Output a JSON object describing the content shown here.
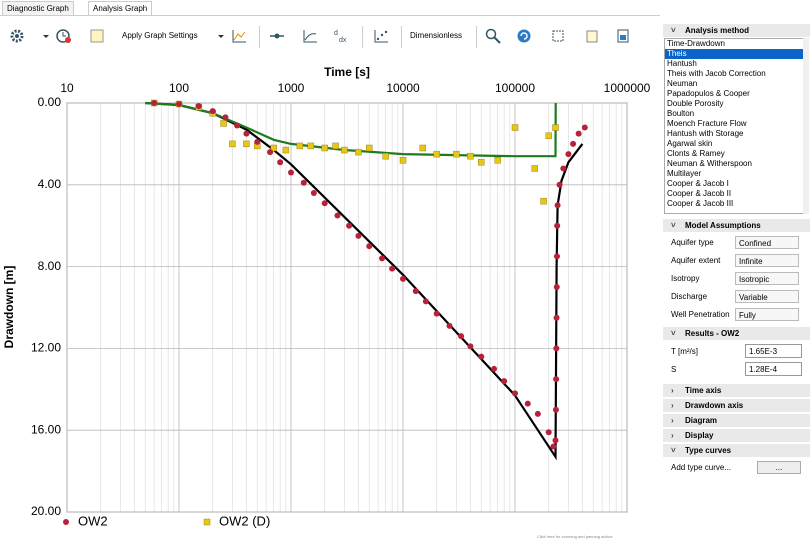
{
  "tabs": [
    "Diagnostic Graph",
    "Analysis Graph"
  ],
  "toolbar": {
    "apply": "Apply Graph Settings",
    "dimensionless": "Dimensionless"
  },
  "chart_data": {
    "type": "scatter",
    "xlabel": "Time [s]",
    "ylabel": "Drawdown [m]",
    "xlog": true,
    "yinverted": true,
    "grid": true,
    "legend": "bottom",
    "xlim": [
      10,
      1000000
    ],
    "xticks": [
      10,
      100,
      1000,
      10000,
      100000,
      1000000
    ],
    "ylim": [
      0,
      20
    ],
    "yticks": [
      {
        "value": 0,
        "label": "0.00"
      },
      {
        "value": 4,
        "label": "4.00"
      },
      {
        "value": 8,
        "label": "8.00"
      },
      {
        "value": 12,
        "label": "12.00"
      },
      {
        "value": 16,
        "label": "16.00"
      },
      {
        "value": 20,
        "label": "20.00"
      }
    ],
    "series": [
      {
        "name": "OW2",
        "color": "#b5223a",
        "marker": "circle",
        "x": [
          60,
          100,
          150,
          200,
          260,
          330,
          400,
          500,
          650,
          800,
          1000,
          1300,
          1600,
          2000,
          2600,
          3300,
          4000,
          5000,
          6500,
          8000,
          10000,
          13000,
          16000,
          20000,
          26000,
          33000,
          40000,
          50000,
          65000,
          80000,
          100000,
          130000,
          160000,
          200000,
          220000,
          230000,
          232000,
          233000,
          234000,
          235000,
          236000,
          237000,
          238000,
          240000,
          250000,
          270000,
          300000,
          330000,
          370000,
          420000
        ],
        "values": [
          0.0,
          0.05,
          0.15,
          0.4,
          0.7,
          1.1,
          1.5,
          1.9,
          2.4,
          2.9,
          3.4,
          3.9,
          4.4,
          4.9,
          5.5,
          6.0,
          6.5,
          7.0,
          7.6,
          8.1,
          8.6,
          9.2,
          9.7,
          10.3,
          10.9,
          11.4,
          11.9,
          12.4,
          13.0,
          13.6,
          14.2,
          14.7,
          15.2,
          16.1,
          16.8,
          16.5,
          15.0,
          13.5,
          12.0,
          10.5,
          9.0,
          7.5,
          6.0,
          5.0,
          4.0,
          3.2,
          2.5,
          2.0,
          1.5,
          1.2
        ]
      },
      {
        "name": "OW2 (D)",
        "color": "#e8c619",
        "marker": "square",
        "x": [
          60,
          100,
          150,
          200,
          250,
          300,
          400,
          500,
          700,
          900,
          1200,
          1500,
          2000,
          2500,
          3000,
          4000,
          5000,
          7000,
          10000,
          15000,
          20000,
          30000,
          40000,
          50000,
          70000,
          100000,
          150000,
          180000,
          200000,
          230000
        ],
        "values": [
          0.0,
          0.05,
          0.2,
          0.5,
          1.0,
          2.0,
          2.0,
          2.1,
          2.2,
          2.3,
          2.1,
          2.1,
          2.2,
          2.1,
          2.3,
          2.4,
          2.2,
          2.6,
          2.8,
          2.2,
          2.5,
          2.5,
          2.6,
          2.9,
          2.8,
          1.2,
          3.2,
          4.8,
          1.6,
          1.2
        ]
      }
    ],
    "curves": [
      {
        "color": "#000000",
        "x": [
          50,
          100,
          200,
          400,
          700,
          1000,
          10000,
          100000,
          230000,
          232000,
          235000,
          240000,
          260000,
          300000,
          400000
        ],
        "values": [
          0,
          0.1,
          0.5,
          1.3,
          2.3,
          3.0,
          8.4,
          14.3,
          17.3,
          14,
          8,
          5,
          3.8,
          2.9,
          2.0
        ]
      },
      {
        "color": "#1f7a1f",
        "x": [
          50,
          100,
          200,
          400,
          700,
          1000,
          3000,
          10000,
          100000,
          230000,
          230500,
          231000
        ],
        "values": [
          0,
          0.1,
          0.5,
          1.2,
          1.8,
          2.0,
          2.3,
          2.5,
          2.6,
          2.6,
          1.3,
          0
        ]
      }
    ],
    "advice": "Click here for zooming and panning advice"
  },
  "panel": {
    "analysis_method": {
      "title": "Analysis method",
      "selected": 1,
      "items": [
        "Time-Drawdown",
        "Theis",
        "Hantush",
        "Theis with Jacob Correction",
        "Neuman",
        "Papadopulos & Cooper",
        "Double Porosity",
        "Boulton",
        "Moench Fracture Flow",
        "Hantush with Storage",
        "Agarwal skin",
        "Clonts & Ramey",
        "Neuman & Witherspoon",
        "Multilayer",
        "Cooper & Jacob I",
        "Cooper & Jacob II",
        "Cooper & Jacob III"
      ]
    },
    "model_assumptions": {
      "title": "Model Assumptions",
      "rows": [
        [
          "Aquifer type",
          "Confined"
        ],
        [
          "Aquifer extent",
          "Infinite"
        ],
        [
          "Isotropy",
          "Isotropic"
        ],
        [
          "Discharge",
          "Variable"
        ],
        [
          "Well Penetration",
          "Fully"
        ]
      ]
    },
    "results": {
      "title": "Results - OW2",
      "rows": [
        [
          "T [m²/s]",
          "1.65E-3"
        ],
        [
          "S",
          "1.28E-4"
        ]
      ]
    },
    "sections": [
      "Time axis",
      "Drawdown axis",
      "Diagram",
      "Display"
    ],
    "type_curves": {
      "title": "Type curves",
      "add": "Add type curve...",
      "button": "..."
    }
  }
}
